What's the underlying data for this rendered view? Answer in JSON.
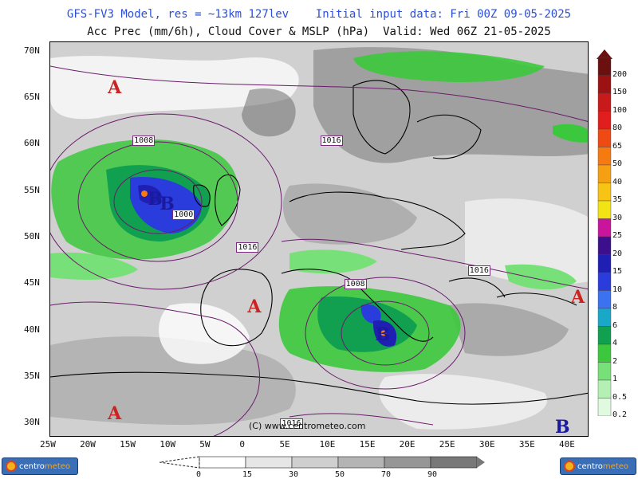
{
  "header": {
    "line1": "GFS-FV3 Model, res = ~13km 127lev    Initial input data: Fri 00Z 09-05-2025",
    "line2": "Acc Prec (mm/6h), Cloud Cover & MSLP (hPa)  Valid: Wed 06Z 21-05-2025"
  },
  "axes": {
    "latitudes": [
      "70N",
      "65N",
      "60N",
      "55N",
      "50N",
      "45N",
      "40N",
      "35N",
      "30N"
    ],
    "longitudes": [
      "25W",
      "20W",
      "15W",
      "10W",
      "5W",
      "0",
      "5E",
      "10E",
      "15E",
      "20E",
      "25E",
      "30E",
      "35E",
      "40E"
    ]
  },
  "precip_legend": {
    "ticks": [
      "200",
      "150",
      "100",
      "80",
      "65",
      "50",
      "40",
      "35",
      "30",
      "25",
      "20",
      "15",
      "10",
      "8",
      "6",
      "4",
      "2",
      "1",
      "0.5",
      "0.2"
    ],
    "colors": [
      "#6b0f0f",
      "#9c1212",
      "#c81a1a",
      "#e01e1e",
      "#f04a14",
      "#f57a10",
      "#f5a012",
      "#f7c416",
      "#f2e414",
      "#c8159c",
      "#3c0f8c",
      "#1f1fb4",
      "#2a3cdc",
      "#3a72f0",
      "#1aa8c8",
      "#10a050",
      "#3cc83c",
      "#78e078",
      "#b4f0b4",
      "#e0fae0"
    ]
  },
  "cloud_legend": {
    "ticks": [
      "0",
      "15",
      "30",
      "50",
      "70",
      "90"
    ],
    "colors": [
      "#ffffff",
      "#e6e6e6",
      "#cfcfcf",
      "#b4b4b4",
      "#969696",
      "#787878"
    ]
  },
  "pressure_systems": [
    {
      "letter": "A",
      "color": "#cc2222",
      "lon": -17,
      "lat": 66
    },
    {
      "letter": "A",
      "color": "#cc2222",
      "lon": 0.5,
      "lat": 42.5
    },
    {
      "letter": "A",
      "color": "#cc2222",
      "lon": -17,
      "lat": 31
    },
    {
      "letter": "A",
      "color": "#cc2222",
      "lon": 41,
      "lat": 43.5
    },
    {
      "letter": "B",
      "color": "#1a1aa0",
      "lon": -12,
      "lat": 54
    },
    {
      "letter": "B",
      "color": "#1a1aa0",
      "lon": -10.5,
      "lat": 53.5
    },
    {
      "letter": "B",
      "color": "#1a1aa0",
      "lon": 16.5,
      "lat": 39.5
    },
    {
      "letter": "B",
      "color": "#1a1aa0",
      "lon": 39,
      "lat": 29.5
    }
  ],
  "isobar_labels": [
    {
      "text": "1008",
      "lon": -13.5,
      "lat": 60.5
    },
    {
      "text": "1000",
      "lon": -8.5,
      "lat": 52.5
    },
    {
      "text": "1016",
      "lon": 10,
      "lat": 60.5
    },
    {
      "text": "1016",
      "lon": -0.5,
      "lat": 49
    },
    {
      "text": "1016",
      "lon": 28.5,
      "lat": 46.5
    },
    {
      "text": "1008",
      "lon": 13,
      "lat": 45
    },
    {
      "text": "1016",
      "lon": 5,
      "lat": 30
    }
  ],
  "credit": "(C) www.centrometeo.com",
  "logos": {
    "left_a": "centro",
    "left_b": "meteo",
    "right_a": "centro",
    "right_b": "meteo"
  }
}
